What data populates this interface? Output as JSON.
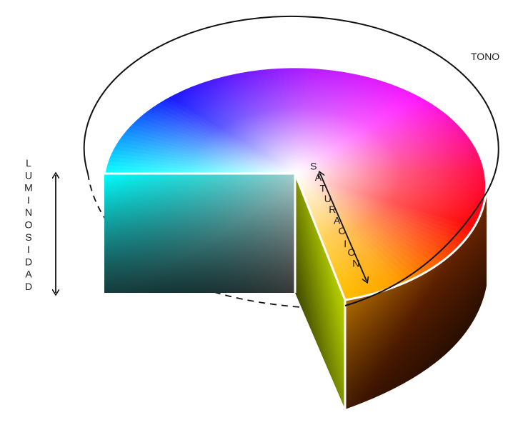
{
  "labels": {
    "hue": "TONO",
    "lightness": "LUMINOSIDAD",
    "saturation": "SATURACION"
  },
  "colors": {
    "top_face_hues": [
      "#ff0000",
      "#ffff00",
      "#00ff00",
      "#00ffff",
      "#0000ff",
      "#ff00ff"
    ],
    "center": "#ffffff",
    "bottom": "#000000",
    "outline": "#111111",
    "edge_highlight": "#ffffff"
  }
}
